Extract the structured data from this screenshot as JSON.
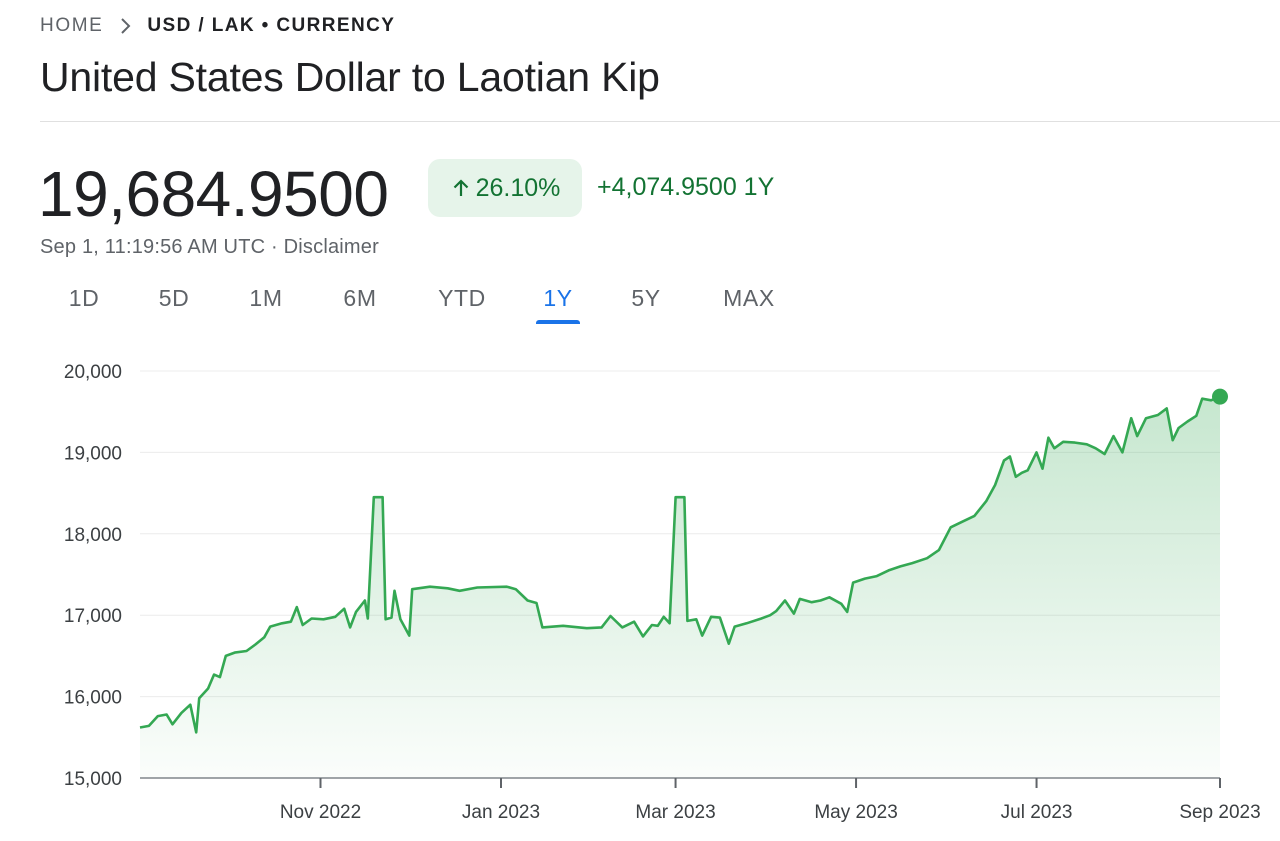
{
  "breadcrumb": {
    "home": "HOME",
    "current": "USD / LAK • CURRENCY"
  },
  "title": "United States Dollar to Laotian Kip",
  "quote": {
    "price": "19,684.9500",
    "change_percent": "26.10%",
    "change_abs": "+4,074.9500 1Y",
    "timestamp": "Sep 1, 11:19:56 AM UTC",
    "separator": " · ",
    "disclaimer": "Disclaimer",
    "trend_icon": "arrow-up-icon"
  },
  "tabs": [
    {
      "label": "1D",
      "active": false
    },
    {
      "label": "5D",
      "active": false
    },
    {
      "label": "1M",
      "active": false
    },
    {
      "label": "6M",
      "active": false
    },
    {
      "label": "YTD",
      "active": false
    },
    {
      "label": "1Y",
      "active": true
    },
    {
      "label": "5Y",
      "active": false
    },
    {
      "label": "MAX",
      "active": false
    }
  ],
  "colors": {
    "line": "#34a853",
    "positive_text": "#137333",
    "positive_bg": "#e6f4ea",
    "accent": "#1a73e8"
  },
  "chart_data": {
    "type": "area",
    "ylim": [
      15000,
      20000
    ],
    "y_ticks": [
      15000,
      16000,
      17000,
      18000,
      19000,
      20000
    ],
    "y_tick_labels": [
      "15,000",
      "16,000",
      "17,000",
      "18,000",
      "19,000",
      "20,000"
    ],
    "x_range": [
      "2022-09-01",
      "2023-09-01"
    ],
    "x_ticks": [
      {
        "date": "2022-11-01",
        "label": "Nov 2022"
      },
      {
        "date": "2023-01-01",
        "label": "Jan 2023"
      },
      {
        "date": "2023-03-01",
        "label": "Mar 2023"
      },
      {
        "date": "2023-05-01",
        "label": "May 2023"
      },
      {
        "date": "2023-07-01",
        "label": "Jul 2023"
      },
      {
        "date": "2023-09-01",
        "label": "Sep 2023"
      }
    ],
    "grid": true,
    "series": [
      {
        "points": [
          [
            "2022-09-01",
            15620
          ],
          [
            "2022-09-04",
            15640
          ],
          [
            "2022-09-07",
            15760
          ],
          [
            "2022-09-10",
            15780
          ],
          [
            "2022-09-12",
            15660
          ],
          [
            "2022-09-15",
            15800
          ],
          [
            "2022-09-18",
            15900
          ],
          [
            "2022-09-20",
            15560
          ],
          [
            "2022-09-21",
            15980
          ],
          [
            "2022-09-24",
            16100
          ],
          [
            "2022-09-26",
            16270
          ],
          [
            "2022-09-28",
            16240
          ],
          [
            "2022-09-30",
            16500
          ],
          [
            "2022-10-03",
            16540
          ],
          [
            "2022-10-07",
            16560
          ],
          [
            "2022-10-10",
            16640
          ],
          [
            "2022-10-13",
            16730
          ],
          [
            "2022-10-15",
            16860
          ],
          [
            "2022-10-19",
            16900
          ],
          [
            "2022-10-22",
            16920
          ],
          [
            "2022-10-24",
            17100
          ],
          [
            "2022-10-26",
            16880
          ],
          [
            "2022-10-29",
            16960
          ],
          [
            "2022-11-02",
            16950
          ],
          [
            "2022-11-06",
            16980
          ],
          [
            "2022-11-09",
            17080
          ],
          [
            "2022-11-11",
            16850
          ],
          [
            "2022-11-13",
            17040
          ],
          [
            "2022-11-16",
            17180
          ],
          [
            "2022-11-17",
            16960
          ],
          [
            "2022-11-19",
            18450
          ],
          [
            "2022-11-22",
            18450
          ],
          [
            "2022-11-23",
            16950
          ],
          [
            "2022-11-25",
            16970
          ],
          [
            "2022-11-26",
            17300
          ],
          [
            "2022-11-28",
            16950
          ],
          [
            "2022-12-01",
            16750
          ],
          [
            "2022-12-02",
            17320
          ],
          [
            "2022-12-08",
            17350
          ],
          [
            "2022-12-14",
            17330
          ],
          [
            "2022-12-18",
            17300
          ],
          [
            "2022-12-24",
            17340
          ],
          [
            "2023-01-03",
            17350
          ],
          [
            "2023-01-06",
            17320
          ],
          [
            "2023-01-10",
            17180
          ],
          [
            "2023-01-13",
            17150
          ],
          [
            "2023-01-15",
            16850
          ],
          [
            "2023-01-22",
            16870
          ],
          [
            "2023-01-30",
            16840
          ],
          [
            "2023-02-04",
            16850
          ],
          [
            "2023-02-07",
            16990
          ],
          [
            "2023-02-11",
            16850
          ],
          [
            "2023-02-15",
            16920
          ],
          [
            "2023-02-18",
            16740
          ],
          [
            "2023-02-21",
            16880
          ],
          [
            "2023-02-23",
            16870
          ],
          [
            "2023-02-25",
            16980
          ],
          [
            "2023-02-27",
            16900
          ],
          [
            "2023-03-01",
            18450
          ],
          [
            "2023-03-04",
            18450
          ],
          [
            "2023-03-05",
            16930
          ],
          [
            "2023-03-08",
            16950
          ],
          [
            "2023-03-10",
            16750
          ],
          [
            "2023-03-13",
            16980
          ],
          [
            "2023-03-16",
            16970
          ],
          [
            "2023-03-19",
            16650
          ],
          [
            "2023-03-21",
            16860
          ],
          [
            "2023-03-25",
            16900
          ],
          [
            "2023-03-30",
            16960
          ],
          [
            "2023-04-02",
            17000
          ],
          [
            "2023-04-04",
            17050
          ],
          [
            "2023-04-07",
            17180
          ],
          [
            "2023-04-10",
            17020
          ],
          [
            "2023-04-12",
            17200
          ],
          [
            "2023-04-16",
            17160
          ],
          [
            "2023-04-19",
            17180
          ],
          [
            "2023-04-22",
            17220
          ],
          [
            "2023-04-26",
            17140
          ],
          [
            "2023-04-28",
            17040
          ],
          [
            "2023-04-30",
            17400
          ],
          [
            "2023-05-04",
            17450
          ],
          [
            "2023-05-08",
            17480
          ],
          [
            "2023-05-12",
            17550
          ],
          [
            "2023-05-16",
            17600
          ],
          [
            "2023-05-20",
            17640
          ],
          [
            "2023-05-25",
            17700
          ],
          [
            "2023-05-29",
            17800
          ],
          [
            "2023-06-02",
            18080
          ],
          [
            "2023-06-06",
            18150
          ],
          [
            "2023-06-10",
            18220
          ],
          [
            "2023-06-14",
            18400
          ],
          [
            "2023-06-17",
            18600
          ],
          [
            "2023-06-20",
            18900
          ],
          [
            "2023-06-22",
            18950
          ],
          [
            "2023-06-24",
            18700
          ],
          [
            "2023-06-26",
            18750
          ],
          [
            "2023-06-28",
            18780
          ],
          [
            "2023-07-01",
            19000
          ],
          [
            "2023-07-03",
            18800
          ],
          [
            "2023-07-05",
            19180
          ],
          [
            "2023-07-07",
            19050
          ],
          [
            "2023-07-10",
            19130
          ],
          [
            "2023-07-14",
            19120
          ],
          [
            "2023-07-18",
            19100
          ],
          [
            "2023-07-21",
            19050
          ],
          [
            "2023-07-24",
            18980
          ],
          [
            "2023-07-27",
            19200
          ],
          [
            "2023-07-30",
            19000
          ],
          [
            "2023-08-02",
            19420
          ],
          [
            "2023-08-04",
            19200
          ],
          [
            "2023-08-07",
            19420
          ],
          [
            "2023-08-11",
            19460
          ],
          [
            "2023-08-14",
            19540
          ],
          [
            "2023-08-16",
            19150
          ],
          [
            "2023-08-18",
            19300
          ],
          [
            "2023-08-21",
            19380
          ],
          [
            "2023-08-24",
            19450
          ],
          [
            "2023-08-26",
            19660
          ],
          [
            "2023-08-29",
            19640
          ],
          [
            "2023-09-01",
            19685
          ]
        ]
      }
    ]
  }
}
